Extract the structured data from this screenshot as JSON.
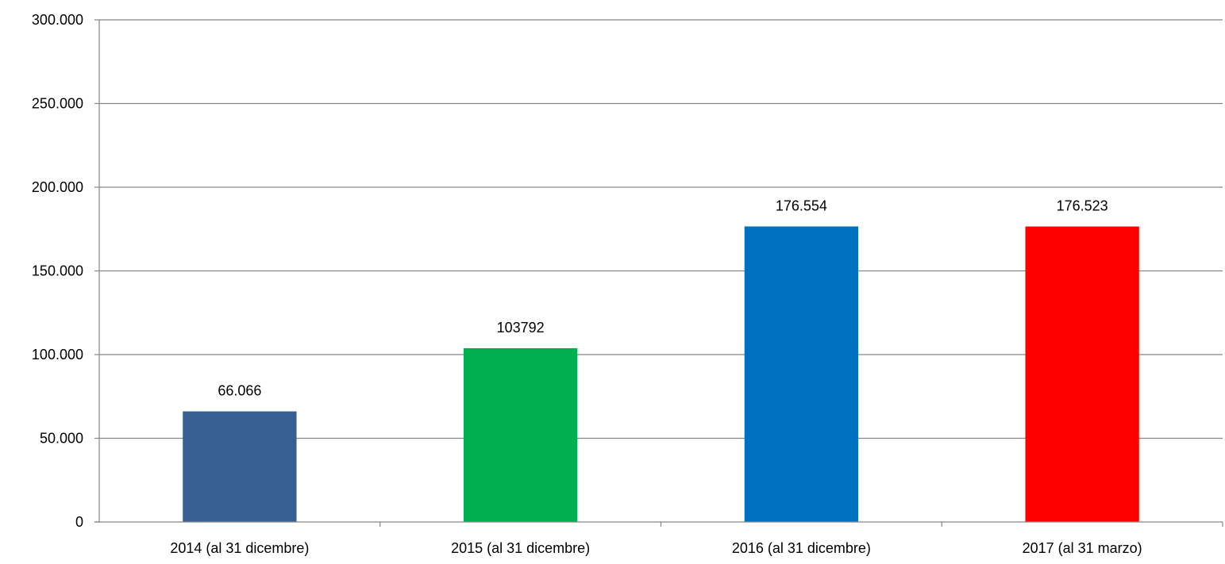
{
  "chart_data": {
    "type": "bar",
    "title": "",
    "xlabel": "",
    "ylabel": "",
    "categories": [
      "2014 (al 31 dicembre)",
      "2015 (al 31 dicembre)",
      "2016 (al 31 dicembre)",
      "2017 (al 31 marzo)"
    ],
    "values": [
      66066,
      103792,
      176554,
      176523
    ],
    "data_labels": [
      "66.066",
      "103792",
      "176.554",
      "176.523"
    ],
    "colors": [
      "#375f8f",
      "#00b050",
      "#0070c0",
      "#ff0000"
    ],
    "ylim": [
      0,
      300000
    ],
    "yticks": [
      0,
      50000,
      100000,
      150000,
      200000,
      250000,
      300000
    ],
    "ytick_labels": [
      "0",
      "50.000",
      "100.000",
      "150.000",
      "200.000",
      "250.000",
      "300.000"
    ],
    "grid": true,
    "legend": "none"
  }
}
